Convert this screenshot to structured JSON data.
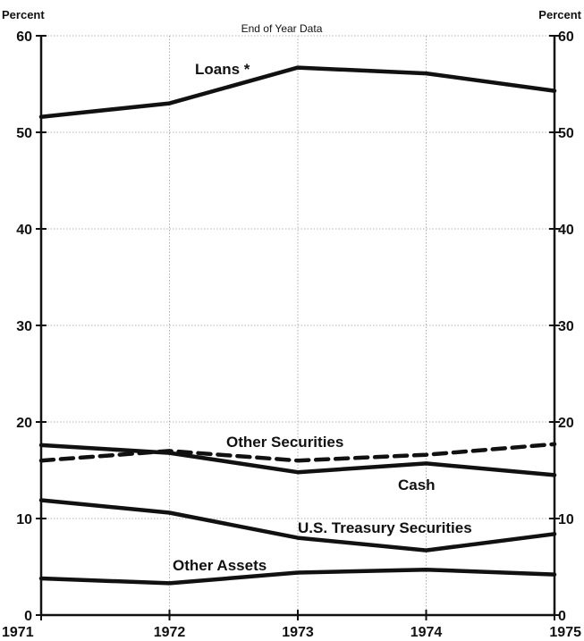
{
  "chart_data": {
    "type": "line",
    "subtitle": "End of Year Data",
    "ylabel_left": "Percent",
    "ylabel_right": "Percent",
    "categories": [
      "1971",
      "1972",
      "1973",
      "1974",
      "1975"
    ],
    "yticks": [
      0,
      10,
      20,
      30,
      40,
      50,
      60
    ],
    "ylim": [
      0,
      60
    ],
    "grid": true,
    "series": [
      {
        "name": "Loans *",
        "style": "solid",
        "values": [
          51.6,
          53.0,
          56.7,
          56.1,
          54.3
        ]
      },
      {
        "name": "Other Securities",
        "style": "dashed",
        "values": [
          16.0,
          17.0,
          16.0,
          16.6,
          17.7
        ]
      },
      {
        "name": "Cash",
        "style": "solid",
        "values": [
          17.6,
          16.8,
          14.8,
          15.7,
          14.5
        ]
      },
      {
        "name": "U.S. Treasury Securities",
        "style": "solid",
        "values": [
          11.9,
          10.6,
          8.0,
          6.7,
          8.4
        ]
      },
      {
        "name": "Other Assets",
        "style": "solid",
        "values": [
          3.8,
          3.3,
          4.4,
          4.7,
          4.2
        ]
      }
    ]
  }
}
